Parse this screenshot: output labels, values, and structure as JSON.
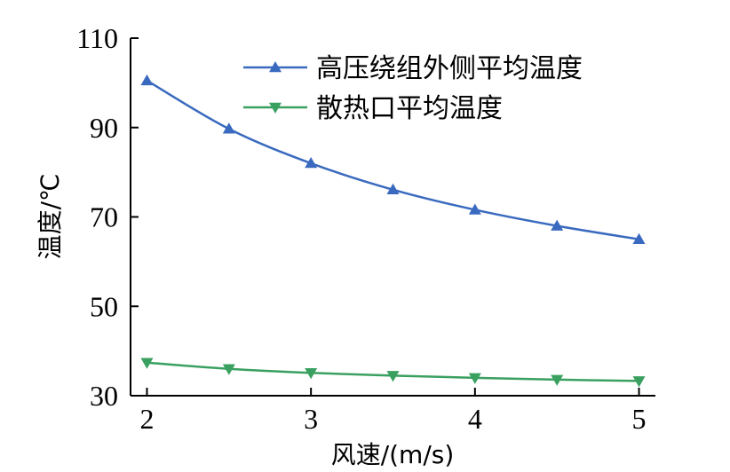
{
  "chart_data": {
    "type": "line",
    "title": "",
    "xlabel": "风速/(m/s)",
    "ylabel": "温度/℃",
    "xlim": [
      1.9,
      5.1
    ],
    "ylim": [
      30,
      110
    ],
    "xticks": [
      2,
      3,
      4,
      5
    ],
    "yticks": [
      30,
      50,
      70,
      90,
      110
    ],
    "x": [
      2,
      2.5,
      3,
      3.5,
      4,
      4.5,
      5
    ],
    "legend_position": "top-right",
    "grid": false,
    "series": [
      {
        "name": "高压绕组外侧平均温度",
        "color": "#3a6abf",
        "marker": "triangle-up-icon",
        "values": [
          100.5,
          89.7,
          82.0,
          76.1,
          71.6,
          68.0,
          65.0
        ]
      },
      {
        "name": "散热口平均温度",
        "color": "#3aa060",
        "marker": "triangle-down-icon",
        "values": [
          37.4,
          36.0,
          35.1,
          34.5,
          34.0,
          33.6,
          33.3
        ]
      }
    ]
  }
}
